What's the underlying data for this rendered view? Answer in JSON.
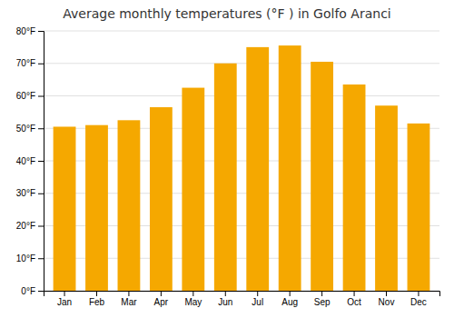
{
  "chart_data": {
    "type": "bar",
    "title": "Average monthly temperatures (°F ) in Golfo Aranci",
    "categories": [
      "Jan",
      "Feb",
      "Mar",
      "Apr",
      "May",
      "Jun",
      "Jul",
      "Aug",
      "Sep",
      "Oct",
      "Nov",
      "Dec"
    ],
    "values": [
      50.5,
      51.0,
      52.5,
      56.5,
      62.5,
      70.0,
      75.0,
      75.5,
      70.5,
      63.5,
      57.0,
      51.5
    ],
    "color": "#F5A800",
    "ylim": [
      0,
      80
    ],
    "yticks": [
      {
        "value": 0,
        "label": "0°F"
      },
      {
        "value": 10,
        "label": "10°F"
      },
      {
        "value": 20,
        "label": "20°F"
      },
      {
        "value": 30,
        "label": "30°F"
      },
      {
        "value": 40,
        "label": "40°F"
      },
      {
        "value": 50,
        "label": "50°F"
      },
      {
        "value": 60,
        "label": "60°F"
      },
      {
        "value": 70,
        "label": "70°F"
      },
      {
        "value": 80,
        "label": "80°F"
      }
    ],
    "grid": true
  }
}
